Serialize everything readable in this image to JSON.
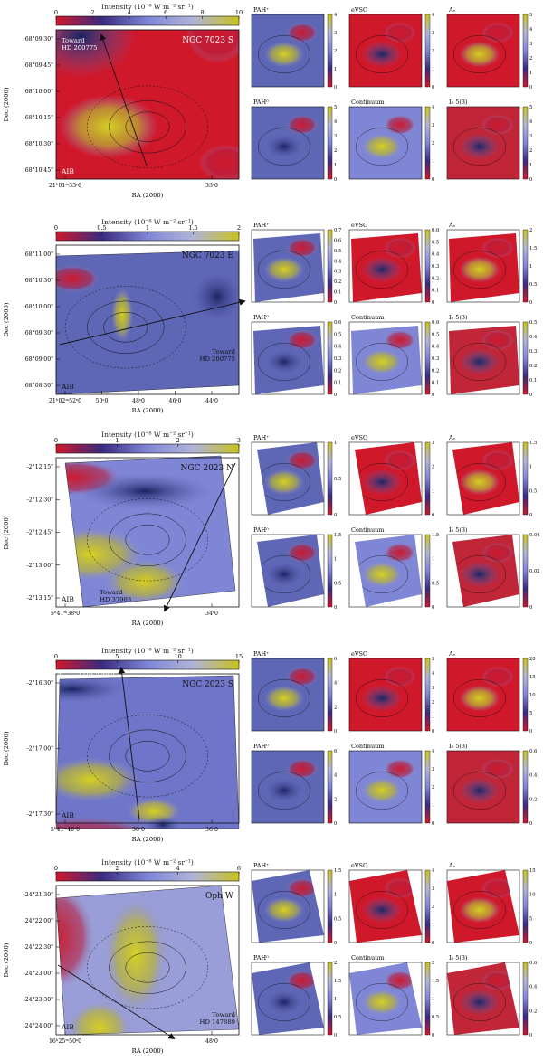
{
  "colorbar_title": "Intensity (10⁻⁸ W m⁻² sr⁻¹)",
  "aib_label": "AIB",
  "ra_axis": "RA (2000)",
  "dec_axis": "Dec (2000)",
  "sub_titles": [
    "PAH⁺",
    "eVSG",
    "Aᵥ",
    "PAH⁰",
    "Continuum",
    "I₀ 5(3)"
  ],
  "rows": [
    {
      "name": "NGC 7023 S",
      "toward": "Toward\nHD 200775",
      "cbar_ticks": [
        "0",
        "2",
        "4",
        "6",
        "8",
        "10"
      ],
      "dec_ticks": [
        "68°09'30\"",
        "68°09'45\"",
        "68°10'00\"",
        "68°10'15\"",
        "68°10'30\"",
        "68°10'45\""
      ],
      "ra_ticks": [
        "21ʰ01ᵐ33ˢ0",
        "33ˢ0"
      ],
      "sub_cbar_ticks": [
        [
          "0",
          "1",
          "2",
          "3",
          "4"
        ],
        [
          "0",
          "1",
          "2",
          "3",
          "4"
        ],
        [
          "0",
          "1",
          "2",
          "3",
          "4",
          "5"
        ],
        [
          "0",
          "1",
          "2",
          "3",
          "4",
          "5"
        ],
        [
          "0",
          "1",
          "2",
          "3",
          "4"
        ],
        [
          "0",
          "1",
          "2",
          "3",
          "4",
          "5"
        ]
      ]
    },
    {
      "name": "NGC 7023 E",
      "toward": "Toward\nHD 200775",
      "cbar_ticks": [
        "0",
        "0.5",
        "1",
        "1.5",
        "2"
      ],
      "dec_ticks": [
        "68°11'00\"",
        "68°10'30\"",
        "68°10'00\"",
        "68°09'30\"",
        "68°09'00\"",
        "68°08'30\""
      ],
      "ra_ticks": [
        "21ʰ02ᵐ52ˢ0",
        "50ˢ0",
        "48ˢ0",
        "46ˢ0",
        "44ˢ0"
      ],
      "sub_cbar_ticks": [
        [
          "0",
          "0.1",
          "0.2",
          "0.3",
          "0.4",
          "0.5",
          "0.6",
          "0.7"
        ],
        [
          "0",
          "0.1",
          "0.2",
          "0.3",
          "0.4",
          "0.5",
          "0.6"
        ],
        [
          "0",
          "0.5",
          "1",
          "1.5",
          "2"
        ],
        [
          "0",
          "0.1",
          "0.2",
          "0.3",
          "0.4",
          "0.5",
          "0.6"
        ],
        [
          "0",
          "0.1",
          "0.2",
          "0.3",
          "0.4",
          "0.5",
          "0.6"
        ],
        [
          "0",
          "0.1",
          "0.2",
          "0.3",
          "0.4",
          "0.5"
        ]
      ]
    },
    {
      "name": "NGC 2023 N",
      "toward": "Toward\nHD 37903",
      "cbar_ticks": [
        "0",
        "1",
        "2",
        "3"
      ],
      "dec_ticks": [
        "-2°12'15\"",
        "-2°12'30\"",
        "-2°12'45\"",
        "-2°13'00\"",
        "-2°13'15\""
      ],
      "ra_ticks": [
        "5ʰ41ᵐ38ˢ0",
        "34ˢ0"
      ],
      "sub_cbar_ticks": [
        [
          "0",
          "0.5",
          "1"
        ],
        [
          "0",
          "1",
          "2",
          "3"
        ],
        [
          "0",
          "0.5",
          "1",
          "1.5"
        ],
        [
          "0",
          "0.5",
          "1",
          "1.5"
        ],
        [
          "0",
          "0.5",
          "1",
          "1.5"
        ],
        [
          "0",
          "0.02",
          "0.04"
        ]
      ]
    },
    {
      "name": "NGC 2023 S",
      "toward": "Toward HD 37903",
      "cbar_ticks": [
        "0",
        "5",
        "10",
        "15"
      ],
      "dec_ticks": [
        "-2°16'30\"",
        "-2°17'00\"",
        "-2°17'30\""
      ],
      "ra_ticks": [
        "5ʰ41ᵐ40ˢ0",
        "38ˢ0",
        "36ˢ0"
      ],
      "sub_cbar_ticks": [
        [
          "0",
          "2",
          "4",
          "6"
        ],
        [
          "0",
          "1",
          "2",
          "3",
          "4",
          "5"
        ],
        [
          "0",
          "5",
          "10",
          "15",
          "20"
        ],
        [
          "0",
          "2",
          "4",
          "6"
        ],
        [
          "0",
          "1",
          "2",
          "3",
          "4"
        ],
        [
          "0",
          "0.2",
          "0.4",
          "0.6"
        ]
      ]
    },
    {
      "name": "Oph W",
      "toward": "Toward\nHD 147889",
      "cbar_ticks": [
        "0",
        "2",
        "4",
        "6"
      ],
      "dec_ticks": [
        "-24°21'30\"",
        "-24°22'00\"",
        "-24°22'30\"",
        "-24°23'00\"",
        "-24°23'30\"",
        "-24°24'00\""
      ],
      "ra_ticks": [
        "16ʰ25ᵐ50ˢ0",
        "48ˢ0"
      ],
      "sub_cbar_ticks": [
        [
          "0",
          "0.5",
          "1",
          "1.5"
        ],
        [
          "0",
          "1",
          "2",
          "3",
          "4"
        ],
        [
          "0",
          "5",
          "10",
          "15"
        ],
        [
          "0",
          "0.5",
          "1",
          "1.5",
          "2"
        ],
        [
          "0",
          "0.5",
          "1",
          "1.5",
          "2"
        ],
        [
          "0",
          "0.2",
          "0.4",
          "0.6"
        ]
      ]
    }
  ],
  "palette": {
    "low": "#d0182b",
    "mid": "#7f86d6",
    "high": "#c9c21e",
    "dark": "#141e52",
    "line": "#111111"
  }
}
